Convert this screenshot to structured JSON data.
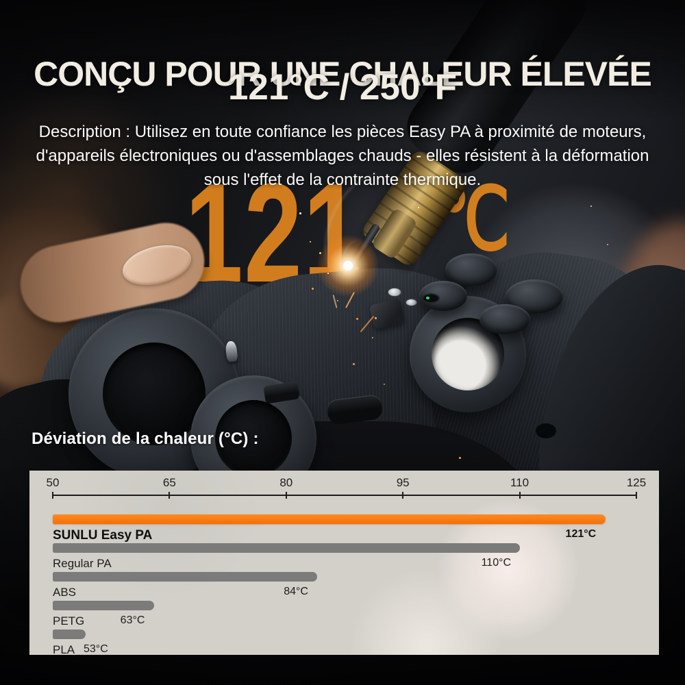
{
  "header": {
    "title": "CONÇU POUR UNE CHALEUR ÉLEVÉE",
    "subtitle": "121°C / 250°F",
    "description_lines": [
      "Description : Utilisez en toute confiance les pièces Easy PA à proximité de moteurs,",
      "d'appareils électroniques ou d'assemblages chauds - elles résistent à la déformation",
      "sous l'effet de la contrainte thermique."
    ]
  },
  "watermark": {
    "number": "121",
    "unit": "℃",
    "color": "#d9821f"
  },
  "chart_data": {
    "type": "bar",
    "orientation": "horizontal",
    "title": "Déviation de la chaleur (°C) :",
    "xlabel": "",
    "ylabel": "",
    "axis": {
      "min": 50,
      "max": 125,
      "ticks": [
        50,
        65,
        80,
        95,
        110,
        125
      ]
    },
    "grid": false,
    "legend": false,
    "series": [
      {
        "name": "SUNLU Easy PA",
        "value": 121,
        "label": "121°C",
        "highlight": true
      },
      {
        "name": "Regular PA",
        "value": 110,
        "label": "110°C",
        "highlight": false
      },
      {
        "name": "ABS",
        "value": 84,
        "label": "84°C",
        "highlight": false
      },
      {
        "name": "PETG",
        "value": 63,
        "label": "63°C",
        "highlight": false
      },
      {
        "name": "PLA",
        "value": 53,
        "label": "53°C",
        "highlight": false
      }
    ],
    "colors": {
      "highlight_bar": "#f97a0d",
      "default_bar": "#7b7b7b",
      "panel_bg": "#d3d0ca",
      "axis": "#1c1c1c"
    }
  }
}
